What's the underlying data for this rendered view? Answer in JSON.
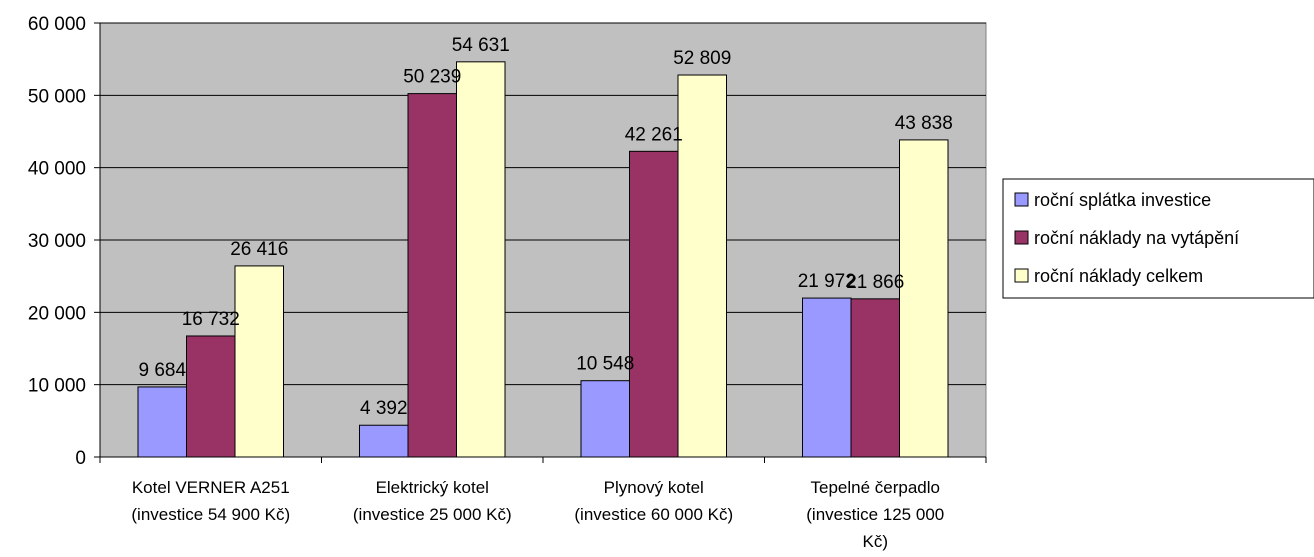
{
  "chart_data": {
    "type": "bar",
    "categories": [
      [
        "Kotel VERNER A251",
        "(investice 54 900 Kč)"
      ],
      [
        "Elektrický kotel",
        "(investice 25 000 Kč)"
      ],
      [
        "Plynový kotel",
        "(investice 60 000 Kč)"
      ],
      [
        "Tepelné čerpadlo",
        "(investice 125 000",
        "Kč)"
      ]
    ],
    "series": [
      {
        "name": "roční splátka investice",
        "color": "#9999ff",
        "values": [
          9684,
          4392,
          10548,
          21972
        ],
        "labels": [
          "9 684",
          "4 392",
          "10 548",
          "21 972"
        ]
      },
      {
        "name": "roční náklady na vytápění",
        "color": "#993366",
        "values": [
          16732,
          50239,
          42261,
          21866
        ],
        "labels": [
          "16 732",
          "50 239",
          "42 261",
          "21 866"
        ]
      },
      {
        "name": "roční náklady celkem",
        "color": "#ffffcc",
        "values": [
          26416,
          54631,
          52809,
          43838
        ],
        "labels": [
          "26 416",
          "54 631",
          "52 809",
          "43 838"
        ]
      }
    ],
    "ylim": [
      0,
      60000
    ],
    "yticks": [
      0,
      10000,
      20000,
      30000,
      40000,
      50000,
      60000
    ],
    "ytick_labels": [
      "0",
      "10 000",
      "20 000",
      "30 000",
      "40 000",
      "50 000",
      "60 000"
    ],
    "plot_background": "#c0c0c0",
    "grid": true,
    "legend_position": "right"
  }
}
